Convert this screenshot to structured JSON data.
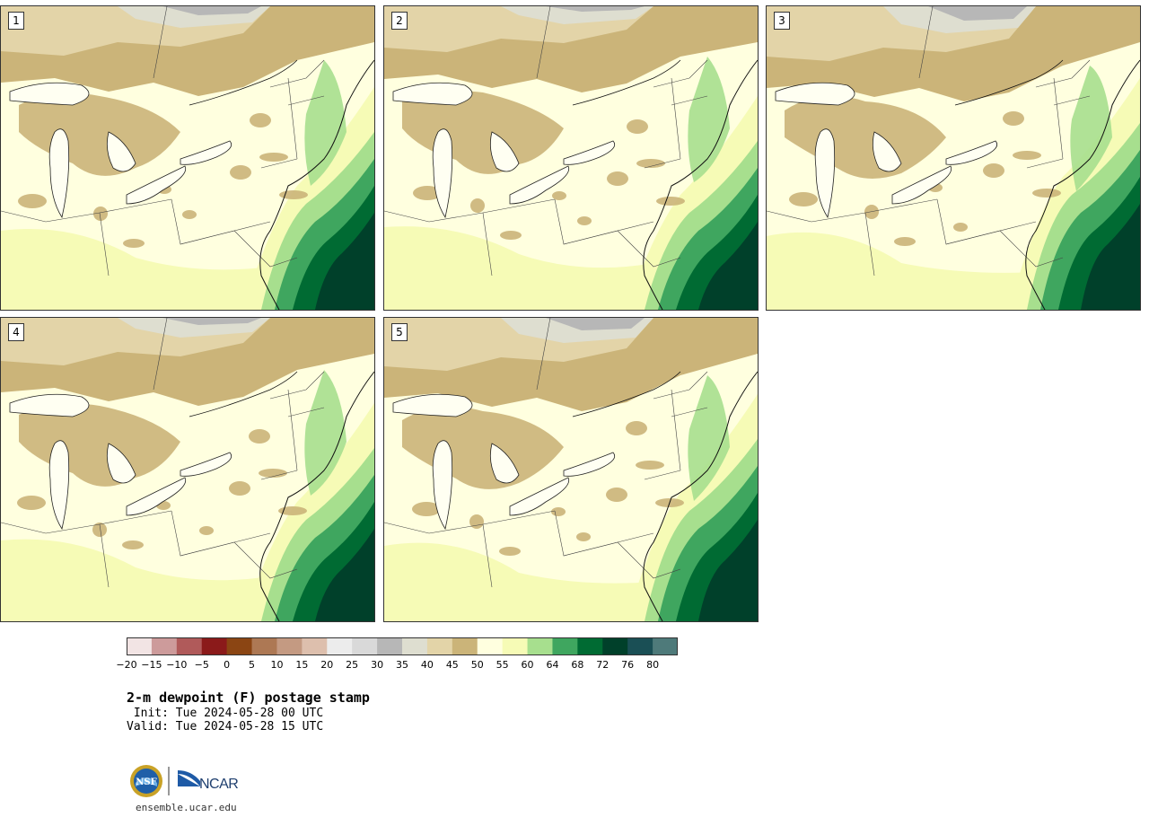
{
  "panels": [
    {
      "label": "1",
      "variant": 0
    },
    {
      "label": "2",
      "variant": 1
    },
    {
      "label": "3",
      "variant": 2
    },
    {
      "label": "4",
      "variant": 3
    },
    {
      "label": "5",
      "variant": 4
    }
  ],
  "colorbar": {
    "colors": [
      "#f2e4e4",
      "#cd9b9b",
      "#b05a5a",
      "#8b1a1a",
      "#8b4513",
      "#ad7854",
      "#c49a82",
      "#ddbfad",
      "#ececec",
      "#d9d9d9",
      "#b7b7b7",
      "#deded0",
      "#e3d4a8",
      "#cbb479",
      "#ffffdf",
      "#f6fbb6",
      "#a7df8e",
      "#3fa65f",
      "#006b33",
      "#00402a",
      "#1a4f55",
      "#4e7a7a"
    ],
    "tick_labels": [
      "−20",
      "−15",
      "−10",
      "−5",
      "0",
      "5",
      "10",
      "15",
      "20",
      "25",
      "30",
      "35",
      "40",
      "45",
      "50",
      "55",
      "60",
      "64",
      "68",
      "72",
      "76",
      "80"
    ]
  },
  "title": "2-m dewpoint (F) postage stamp",
  "init": " Init: Tue 2024-05-28 00 UTC",
  "valid": "Valid: Tue 2024-05-28 15 UTC",
  "logo": {
    "nsf_text": "NSF",
    "ncar_text": "NCAR"
  },
  "url": "ensemble.ucar.edu"
}
